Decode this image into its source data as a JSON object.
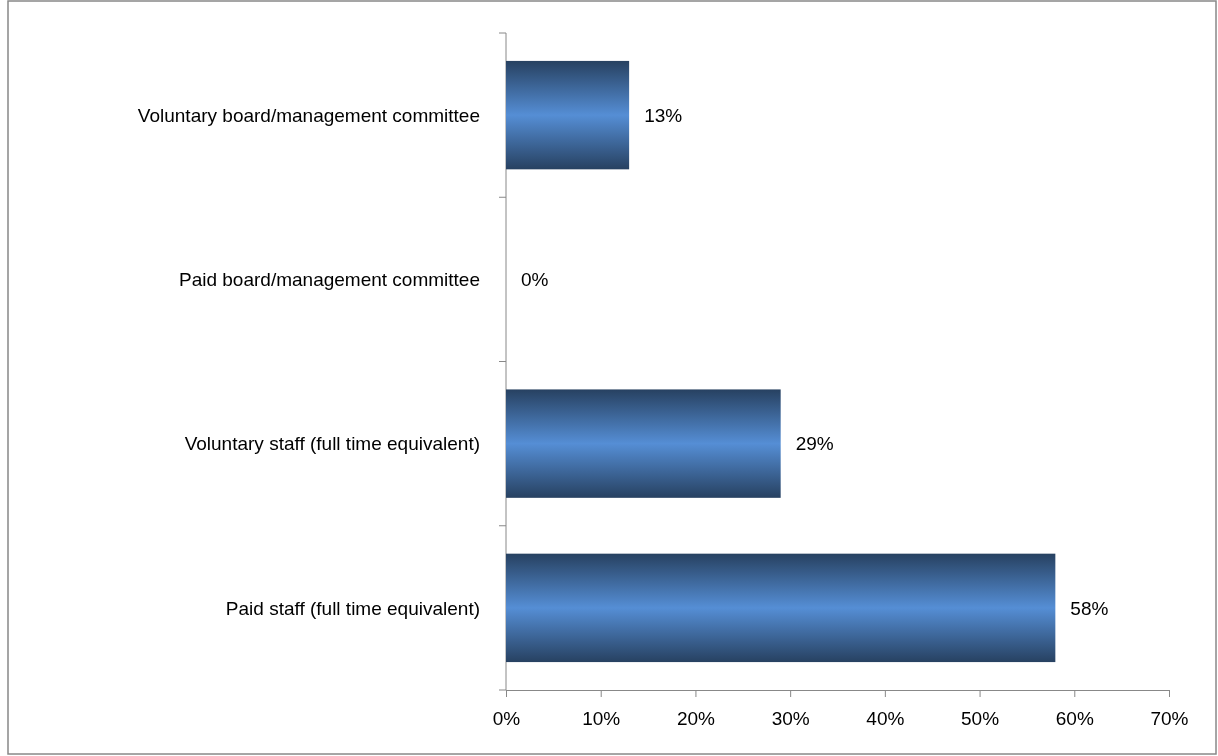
{
  "chart_data": {
    "type": "bar",
    "orientation": "horizontal",
    "categories": [
      "Voluntary board/management committee",
      "Paid board/management committee",
      "Voluntary staff (full time equivalent)",
      "Paid staff (full time equivalent)"
    ],
    "values": [
      13,
      0,
      29,
      58
    ],
    "value_labels": [
      "13%",
      "0%",
      "29%",
      "58%"
    ],
    "color": "#558ed5",
    "xlim": [
      0,
      70
    ],
    "xticks": [
      {
        "value": 0,
        "label": "0%"
      },
      {
        "value": 10,
        "label": "10%"
      },
      {
        "value": 20,
        "label": "20%"
      },
      {
        "value": 30,
        "label": "30%"
      },
      {
        "value": 40,
        "label": "40%"
      },
      {
        "value": 50,
        "label": "50%"
      },
      {
        "value": 60,
        "label": "60%"
      },
      {
        "value": 70,
        "label": "70%"
      }
    ],
    "grid": false
  }
}
